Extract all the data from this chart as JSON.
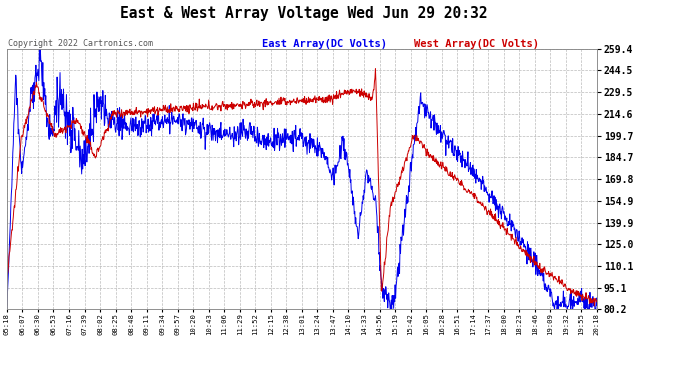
{
  "title": "East & West Array Voltage Wed Jun 29 20:32",
  "legend_east": "East Array(DC Volts)",
  "legend_west": "West Array(DC Volts)",
  "copyright": "Copyright 2022 Cartronics.com",
  "bg_color": "#ffffff",
  "plot_bg_color": "#ffffff",
  "grid_color": "#aaaaaa",
  "east_color": "#0000ee",
  "west_color": "#cc0000",
  "title_color": "#000000",
  "east_legend_color": "#0000ee",
  "west_legend_color": "#cc0000",
  "copyright_color": "#555555",
  "yticks": [
    80.2,
    95.1,
    110.1,
    125.0,
    139.9,
    154.9,
    169.8,
    184.7,
    199.7,
    214.6,
    229.5,
    244.5,
    259.4
  ],
  "xtick_labels": [
    "05:18",
    "06:07",
    "06:30",
    "06:53",
    "07:16",
    "07:39",
    "08:02",
    "08:25",
    "08:48",
    "09:11",
    "09:34",
    "09:57",
    "10:20",
    "10:43",
    "11:06",
    "11:29",
    "11:52",
    "12:15",
    "12:38",
    "13:01",
    "13:24",
    "13:47",
    "14:10",
    "14:33",
    "14:56",
    "15:19",
    "15:42",
    "16:05",
    "16:28",
    "16:51",
    "17:14",
    "17:37",
    "18:00",
    "18:23",
    "18:46",
    "19:09",
    "19:32",
    "19:55",
    "20:18"
  ],
  "ymin": 80.2,
  "ymax": 259.4
}
